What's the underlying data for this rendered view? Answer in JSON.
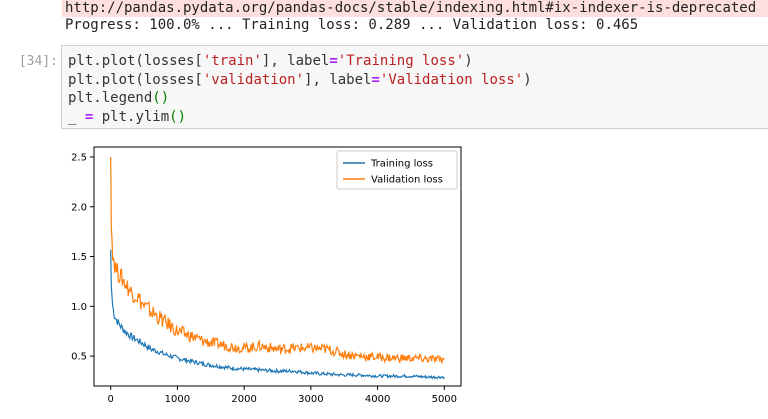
{
  "output": {
    "warning_line": "http://pandas.pydata.org/pandas-docs/stable/indexing.html#ix-indexer-is-deprecated",
    "progress_line": "Progress: 100.0% ... Training loss: 0.289 ... Validation loss: 0.465"
  },
  "cell": {
    "prompt": "[34]:",
    "code_lines": [
      "plt.plot(losses['train'], label='Training loss')",
      "plt.plot(losses['validation'], label='Validation loss')",
      "plt.legend()",
      "_ = plt.ylim()"
    ]
  },
  "chart_data": {
    "type": "line",
    "title": "",
    "xlabel": "",
    "ylabel": "",
    "xlim": [
      -250,
      5250
    ],
    "ylim": [
      0.2,
      2.6
    ],
    "xticks": [
      0,
      1000,
      2000,
      3000,
      4000,
      5000
    ],
    "yticks": [
      0.5,
      1.0,
      1.5,
      2.0,
      2.5
    ],
    "xtick_labels": [
      "0",
      "1000",
      "2000",
      "3000",
      "4000",
      "5000"
    ],
    "ytick_labels": [
      "0.5",
      "1.0",
      "1.5",
      "2.0",
      "2.5"
    ],
    "legend_position": "top-right",
    "grid": false,
    "x": [
      0,
      10,
      30,
      60,
      100,
      150,
      200,
      300,
      400,
      500,
      600,
      700,
      800,
      900,
      1000,
      1200,
      1400,
      1600,
      1800,
      2000,
      2250,
      2500,
      2750,
      3000,
      3250,
      3500,
      3750,
      4000,
      4250,
      4500,
      4750,
      5000
    ],
    "series": [
      {
        "name": "Training loss",
        "color": "#1f77b4",
        "values": [
          1.57,
          1.2,
          1.0,
          0.9,
          0.85,
          0.8,
          0.76,
          0.7,
          0.66,
          0.62,
          0.57,
          0.55,
          0.52,
          0.5,
          0.48,
          0.45,
          0.42,
          0.4,
          0.38,
          0.37,
          0.36,
          0.35,
          0.35,
          0.33,
          0.32,
          0.31,
          0.31,
          0.3,
          0.3,
          0.3,
          0.29,
          0.29
        ]
      },
      {
        "name": "Validation loss",
        "color": "#ff7f0e",
        "values": [
          2.5,
          1.8,
          1.55,
          1.42,
          1.35,
          1.3,
          1.25,
          1.15,
          1.1,
          1.0,
          0.95,
          0.9,
          0.85,
          0.8,
          0.75,
          0.7,
          0.65,
          0.62,
          0.6,
          0.58,
          0.6,
          0.57,
          0.58,
          0.58,
          0.57,
          0.52,
          0.5,
          0.49,
          0.48,
          0.48,
          0.47,
          0.465
        ]
      }
    ]
  }
}
